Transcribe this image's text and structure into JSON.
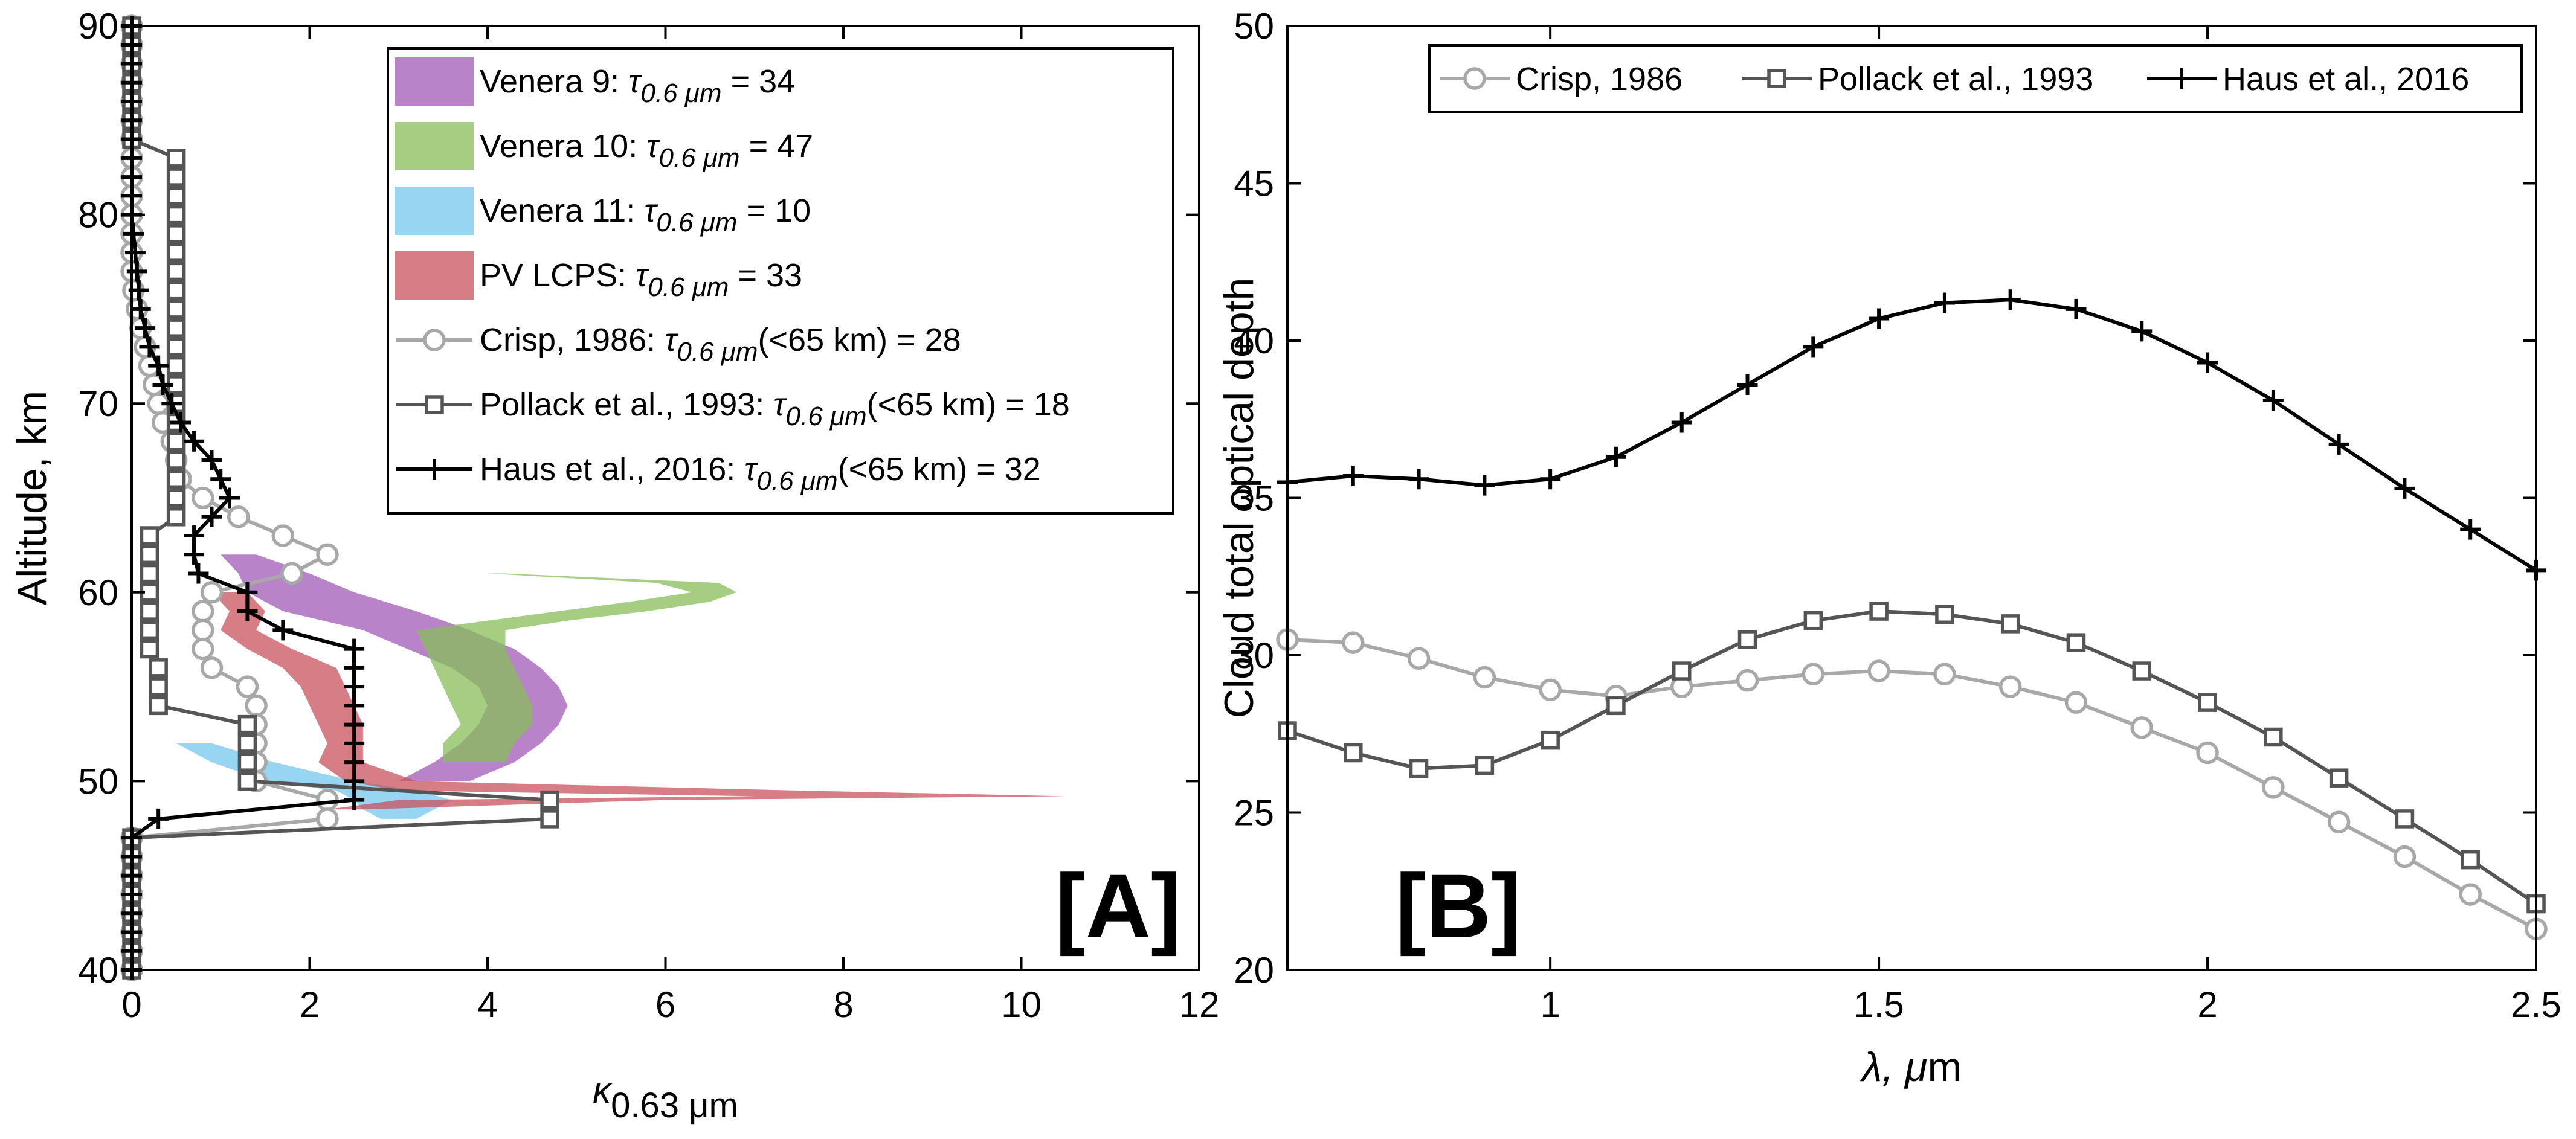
{
  "chart_data": [
    {
      "type": "line",
      "panel": "[A]",
      "xlabel_base": "κ",
      "xlabel_sub": "0.63 μm",
      "ylabel": "Altitude, km",
      "xlim": [
        0,
        12
      ],
      "ylim": [
        40,
        90
      ],
      "xticks": [
        0,
        2,
        4,
        6,
        8,
        10,
        12
      ],
      "yticks": [
        40,
        50,
        60,
        70,
        80,
        90
      ],
      "bands": [
        {
          "name": "Venera 9",
          "legend": {
            "pre": "Venera 9: τ",
            "sub": "0.6 μm",
            "post": " = 34"
          },
          "color": "#a259b8",
          "alt": [
            62,
            61,
            60,
            59,
            58,
            57,
            56,
            55,
            54,
            53,
            52,
            51,
            50
          ],
          "lo": [
            1.0,
            1.2,
            1.3,
            1.7,
            2.6,
            3.1,
            3.6,
            3.9,
            4.0,
            3.9,
            3.7,
            3.4,
            3.0
          ],
          "hi": [
            1.4,
            2.0,
            2.5,
            3.2,
            3.8,
            4.3,
            4.6,
            4.8,
            4.9,
            4.8,
            4.6,
            4.3,
            3.8
          ]
        },
        {
          "name": "Venera 10",
          "legend": {
            "pre": "Venera 10: τ",
            "sub": "0.6 μm",
            "post": " = 47"
          },
          "color": "#88bd5a",
          "alt": [
            61,
            60.5,
            60,
            59.5,
            59,
            58.5,
            58,
            57,
            56,
            55,
            54,
            53,
            52,
            51
          ],
          "lo": [
            4.0,
            5.9,
            6.3,
            5.6,
            4.8,
            4.0,
            3.2,
            3.3,
            3.4,
            3.5,
            3.6,
            3.7,
            3.5,
            3.5
          ],
          "hi": [
            4.2,
            6.6,
            6.8,
            6.5,
            5.8,
            4.9,
            4.2,
            4.2,
            4.3,
            4.4,
            4.5,
            4.5,
            4.3,
            4.2
          ]
        },
        {
          "name": "Venera 11",
          "legend": {
            "pre": "Venera 11: τ",
            "sub": "0.6 μm",
            "post": " = 10"
          },
          "color": "#75c7ee",
          "alt": [
            52,
            51,
            50,
            49.5,
            49,
            48.5,
            48
          ],
          "lo": [
            0.5,
            0.9,
            1.5,
            2.3,
            2.5,
            2.6,
            2.8
          ],
          "hi": [
            0.9,
            1.6,
            2.5,
            3.2,
            3.6,
            3.4,
            3.2
          ]
        },
        {
          "name": "PV LCPS",
          "legend": {
            "pre": "PV LCPS: τ",
            "sub": "0.6 μm",
            "post": " = 33"
          },
          "color": "#c9515e",
          "alt": [
            60,
            59,
            58,
            57,
            56,
            55,
            54,
            53,
            52,
            51,
            50,
            49.5,
            49.2,
            49,
            48.5
          ],
          "lo": [
            0.9,
            1.1,
            1.0,
            1.3,
            1.7,
            1.9,
            2.0,
            2.1,
            2.2,
            2.1,
            2.4,
            3.0,
            7.0,
            3.0,
            2.2
          ],
          "hi": [
            1.3,
            1.5,
            1.4,
            1.8,
            2.3,
            2.4,
            2.5,
            2.6,
            2.6,
            2.6,
            3.2,
            7.5,
            10.5,
            6.0,
            2.6
          ]
        }
      ],
      "series": [
        {
          "name": "Crisp, 1986",
          "legend": {
            "pre": "Crisp, 1986: τ",
            "sub": "0.6 μm",
            "post": "(<65 km) = 28"
          },
          "color": "#a8a8a8",
          "marker": "circle",
          "alt": [
            90,
            89,
            88,
            87,
            86,
            85,
            84,
            83,
            82,
            81,
            80,
            79,
            78,
            77,
            76,
            75,
            74,
            73,
            72,
            71,
            70,
            69,
            68,
            67,
            66,
            65,
            64,
            63,
            62,
            61,
            60,
            59,
            58,
            57,
            56,
            55,
            54,
            53,
            52,
            51,
            50,
            49,
            48,
            47,
            46,
            45,
            44,
            43,
            42,
            41,
            40
          ],
          "kappa": [
            0,
            0,
            0,
            0,
            0,
            0,
            0,
            0,
            0,
            0,
            0,
            0,
            0,
            0,
            0.02,
            0.06,
            0.1,
            0.15,
            0.2,
            0.25,
            0.3,
            0.35,
            0.45,
            0.5,
            0.55,
            0.8,
            1.2,
            1.7,
            2.2,
            1.8,
            0.9,
            0.8,
            0.8,
            0.8,
            0.9,
            1.3,
            1.4,
            1.4,
            1.4,
            1.4,
            1.4,
            2.2,
            2.2,
            0,
            0,
            0,
            0,
            0,
            0,
            0,
            0
          ]
        },
        {
          "name": "Pollack et al., 1993",
          "legend": {
            "pre": "Pollack et al., 1993: τ",
            "sub": "0.6 μm",
            "post": "(<65 km) = 18"
          },
          "color": "#555555",
          "marker": "square",
          "alt": [
            90,
            89,
            88,
            87,
            86,
            85,
            84,
            83,
            82,
            81,
            80,
            79,
            78,
            77,
            76,
            75,
            74,
            73,
            72,
            71,
            70,
            69,
            68,
            67,
            66,
            65,
            64,
            63,
            62,
            61,
            60,
            59,
            58,
            57,
            56,
            55,
            54,
            53,
            52,
            51,
            50,
            49,
            48,
            47,
            46,
            45,
            44,
            43,
            42,
            41,
            40
          ],
          "kappa": [
            0,
            0,
            0,
            0,
            0,
            0,
            0,
            0.5,
            0.5,
            0.5,
            0.5,
            0.5,
            0.5,
            0.5,
            0.5,
            0.5,
            0.5,
            0.5,
            0.5,
            0.5,
            0.5,
            0.5,
            0.5,
            0.5,
            0.5,
            0.5,
            0.5,
            0.2,
            0.2,
            0.2,
            0.2,
            0.2,
            0.2,
            0.2,
            0.3,
            0.3,
            0.3,
            1.3,
            1.3,
            1.3,
            1.3,
            4.7,
            4.7,
            0,
            0,
            0,
            0,
            0,
            0,
            0,
            0
          ]
        },
        {
          "name": "Haus et al., 2016",
          "legend": {
            "pre": "Haus et al., 2016: τ",
            "sub": "0.6 μm",
            "post": "(<65 km) = 32"
          },
          "color": "#000000",
          "marker": "plus",
          "alt": [
            90,
            89,
            88,
            87,
            86,
            85,
            84,
            83,
            82,
            81,
            80,
            79,
            78,
            77,
            76,
            75,
            74,
            73,
            72,
            71,
            70,
            69,
            68,
            67,
            66,
            65,
            64,
            63,
            62,
            61,
            60,
            59,
            58,
            57,
            56,
            55,
            54,
            53,
            52,
            51,
            50,
            49,
            48,
            47,
            46,
            45,
            44,
            43,
            42,
            41,
            40
          ],
          "kappa": [
            0,
            0,
            0,
            0,
            0,
            0,
            0,
            0,
            0,
            0,
            0,
            0.02,
            0.04,
            0.06,
            0.08,
            0.1,
            0.15,
            0.2,
            0.3,
            0.35,
            0.45,
            0.55,
            0.7,
            0.9,
            1.0,
            1.1,
            0.9,
            0.7,
            0.7,
            0.75,
            1.3,
            1.3,
            1.7,
            2.5,
            2.5,
            2.5,
            2.5,
            2.5,
            2.5,
            2.5,
            2.5,
            2.5,
            0.3,
            0,
            0,
            0,
            0,
            0,
            0,
            0,
            0
          ]
        }
      ]
    },
    {
      "type": "line",
      "panel": "[B]",
      "xlabel_base": "λ, ",
      "xlabel_it": "μ",
      "xlabel_end": "m",
      "ylabel": "Cloud total optical depth",
      "xlim": [
        0.6,
        2.5
      ],
      "ylim": [
        20,
        50
      ],
      "xticks": [
        1,
        1.5,
        2,
        2.5
      ],
      "yticks": [
        20,
        25,
        30,
        35,
        40,
        45,
        50
      ],
      "x": [
        0.6,
        0.7,
        0.8,
        0.9,
        1.0,
        1.1,
        1.2,
        1.3,
        1.4,
        1.5,
        1.6,
        1.7,
        1.8,
        1.9,
        2.0,
        2.1,
        2.2,
        2.3,
        2.4,
        2.5
      ],
      "series": [
        {
          "name": "Crisp, 1986",
          "color": "#a8a8a8",
          "marker": "circle",
          "values": [
            30.5,
            30.4,
            29.9,
            29.3,
            28.9,
            28.7,
            29.0,
            29.2,
            29.4,
            29.5,
            29.4,
            29.0,
            28.5,
            27.7,
            26.9,
            25.8,
            24.7,
            23.6,
            22.4,
            21.3
          ]
        },
        {
          "name": "Pollack et al., 1993",
          "color": "#555555",
          "marker": "square",
          "values": [
            27.6,
            26.9,
            26.4,
            26.5,
            27.3,
            28.4,
            29.5,
            30.5,
            31.1,
            31.4,
            31.3,
            31.0,
            30.4,
            29.5,
            28.5,
            27.4,
            26.1,
            24.8,
            23.5,
            22.1
          ]
        },
        {
          "name": "Haus et al., 2016",
          "color": "#000000",
          "marker": "plus",
          "values": [
            35.5,
            35.7,
            35.6,
            35.4,
            35.6,
            36.3,
            37.4,
            38.6,
            39.8,
            40.7,
            41.2,
            41.3,
            41.0,
            40.3,
            39.3,
            38.1,
            36.7,
            35.3,
            34.0,
            32.7
          ]
        }
      ]
    }
  ]
}
